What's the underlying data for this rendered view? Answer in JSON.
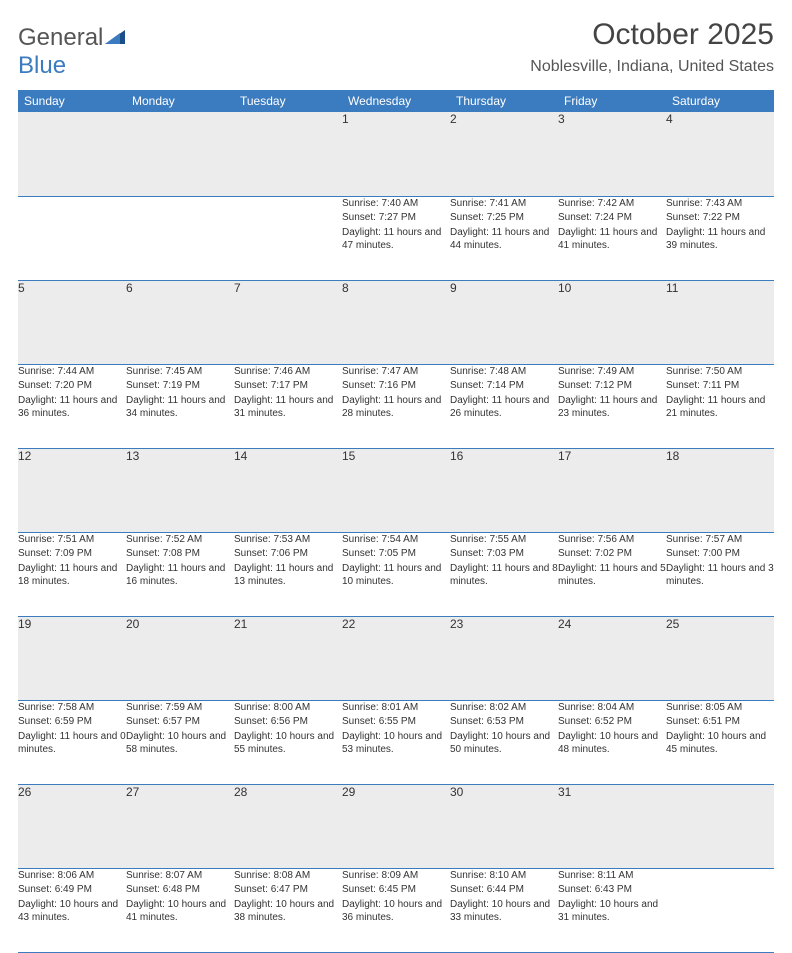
{
  "logo": {
    "text1": "General",
    "text2": "Blue"
  },
  "title": "October 2025",
  "location": "Noblesville, Indiana, United States",
  "colors": {
    "header_bg": "#3b7bbf",
    "header_fg": "#ffffff",
    "daynum_bg": "#ececec",
    "border": "#3b7bbf",
    "text": "#333333",
    "logo_gray": "#555555",
    "logo_blue": "#3b7bbf"
  },
  "day_names": [
    "Sunday",
    "Monday",
    "Tuesday",
    "Wednesday",
    "Thursday",
    "Friday",
    "Saturday"
  ],
  "weeks": [
    [
      {
        "n": "",
        "sr": "",
        "ss": "",
        "dl": ""
      },
      {
        "n": "",
        "sr": "",
        "ss": "",
        "dl": ""
      },
      {
        "n": "",
        "sr": "",
        "ss": "",
        "dl": ""
      },
      {
        "n": "1",
        "sr": "Sunrise: 7:40 AM",
        "ss": "Sunset: 7:27 PM",
        "dl": "Daylight: 11 hours and 47 minutes."
      },
      {
        "n": "2",
        "sr": "Sunrise: 7:41 AM",
        "ss": "Sunset: 7:25 PM",
        "dl": "Daylight: 11 hours and 44 minutes."
      },
      {
        "n": "3",
        "sr": "Sunrise: 7:42 AM",
        "ss": "Sunset: 7:24 PM",
        "dl": "Daylight: 11 hours and 41 minutes."
      },
      {
        "n": "4",
        "sr": "Sunrise: 7:43 AM",
        "ss": "Sunset: 7:22 PM",
        "dl": "Daylight: 11 hours and 39 minutes."
      }
    ],
    [
      {
        "n": "5",
        "sr": "Sunrise: 7:44 AM",
        "ss": "Sunset: 7:20 PM",
        "dl": "Daylight: 11 hours and 36 minutes."
      },
      {
        "n": "6",
        "sr": "Sunrise: 7:45 AM",
        "ss": "Sunset: 7:19 PM",
        "dl": "Daylight: 11 hours and 34 minutes."
      },
      {
        "n": "7",
        "sr": "Sunrise: 7:46 AM",
        "ss": "Sunset: 7:17 PM",
        "dl": "Daylight: 11 hours and 31 minutes."
      },
      {
        "n": "8",
        "sr": "Sunrise: 7:47 AM",
        "ss": "Sunset: 7:16 PM",
        "dl": "Daylight: 11 hours and 28 minutes."
      },
      {
        "n": "9",
        "sr": "Sunrise: 7:48 AM",
        "ss": "Sunset: 7:14 PM",
        "dl": "Daylight: 11 hours and 26 minutes."
      },
      {
        "n": "10",
        "sr": "Sunrise: 7:49 AM",
        "ss": "Sunset: 7:12 PM",
        "dl": "Daylight: 11 hours and 23 minutes."
      },
      {
        "n": "11",
        "sr": "Sunrise: 7:50 AM",
        "ss": "Sunset: 7:11 PM",
        "dl": "Daylight: 11 hours and 21 minutes."
      }
    ],
    [
      {
        "n": "12",
        "sr": "Sunrise: 7:51 AM",
        "ss": "Sunset: 7:09 PM",
        "dl": "Daylight: 11 hours and 18 minutes."
      },
      {
        "n": "13",
        "sr": "Sunrise: 7:52 AM",
        "ss": "Sunset: 7:08 PM",
        "dl": "Daylight: 11 hours and 16 minutes."
      },
      {
        "n": "14",
        "sr": "Sunrise: 7:53 AM",
        "ss": "Sunset: 7:06 PM",
        "dl": "Daylight: 11 hours and 13 minutes."
      },
      {
        "n": "15",
        "sr": "Sunrise: 7:54 AM",
        "ss": "Sunset: 7:05 PM",
        "dl": "Daylight: 11 hours and 10 minutes."
      },
      {
        "n": "16",
        "sr": "Sunrise: 7:55 AM",
        "ss": "Sunset: 7:03 PM",
        "dl": "Daylight: 11 hours and 8 minutes."
      },
      {
        "n": "17",
        "sr": "Sunrise: 7:56 AM",
        "ss": "Sunset: 7:02 PM",
        "dl": "Daylight: 11 hours and 5 minutes."
      },
      {
        "n": "18",
        "sr": "Sunrise: 7:57 AM",
        "ss": "Sunset: 7:00 PM",
        "dl": "Daylight: 11 hours and 3 minutes."
      }
    ],
    [
      {
        "n": "19",
        "sr": "Sunrise: 7:58 AM",
        "ss": "Sunset: 6:59 PM",
        "dl": "Daylight: 11 hours and 0 minutes."
      },
      {
        "n": "20",
        "sr": "Sunrise: 7:59 AM",
        "ss": "Sunset: 6:57 PM",
        "dl": "Daylight: 10 hours and 58 minutes."
      },
      {
        "n": "21",
        "sr": "Sunrise: 8:00 AM",
        "ss": "Sunset: 6:56 PM",
        "dl": "Daylight: 10 hours and 55 minutes."
      },
      {
        "n": "22",
        "sr": "Sunrise: 8:01 AM",
        "ss": "Sunset: 6:55 PM",
        "dl": "Daylight: 10 hours and 53 minutes."
      },
      {
        "n": "23",
        "sr": "Sunrise: 8:02 AM",
        "ss": "Sunset: 6:53 PM",
        "dl": "Daylight: 10 hours and 50 minutes."
      },
      {
        "n": "24",
        "sr": "Sunrise: 8:04 AM",
        "ss": "Sunset: 6:52 PM",
        "dl": "Daylight: 10 hours and 48 minutes."
      },
      {
        "n": "25",
        "sr": "Sunrise: 8:05 AM",
        "ss": "Sunset: 6:51 PM",
        "dl": "Daylight: 10 hours and 45 minutes."
      }
    ],
    [
      {
        "n": "26",
        "sr": "Sunrise: 8:06 AM",
        "ss": "Sunset: 6:49 PM",
        "dl": "Daylight: 10 hours and 43 minutes."
      },
      {
        "n": "27",
        "sr": "Sunrise: 8:07 AM",
        "ss": "Sunset: 6:48 PM",
        "dl": "Daylight: 10 hours and 41 minutes."
      },
      {
        "n": "28",
        "sr": "Sunrise: 8:08 AM",
        "ss": "Sunset: 6:47 PM",
        "dl": "Daylight: 10 hours and 38 minutes."
      },
      {
        "n": "29",
        "sr": "Sunrise: 8:09 AM",
        "ss": "Sunset: 6:45 PM",
        "dl": "Daylight: 10 hours and 36 minutes."
      },
      {
        "n": "30",
        "sr": "Sunrise: 8:10 AM",
        "ss": "Sunset: 6:44 PM",
        "dl": "Daylight: 10 hours and 33 minutes."
      },
      {
        "n": "31",
        "sr": "Sunrise: 8:11 AM",
        "ss": "Sunset: 6:43 PM",
        "dl": "Daylight: 10 hours and 31 minutes."
      },
      {
        "n": "",
        "sr": "",
        "ss": "",
        "dl": ""
      }
    ]
  ]
}
